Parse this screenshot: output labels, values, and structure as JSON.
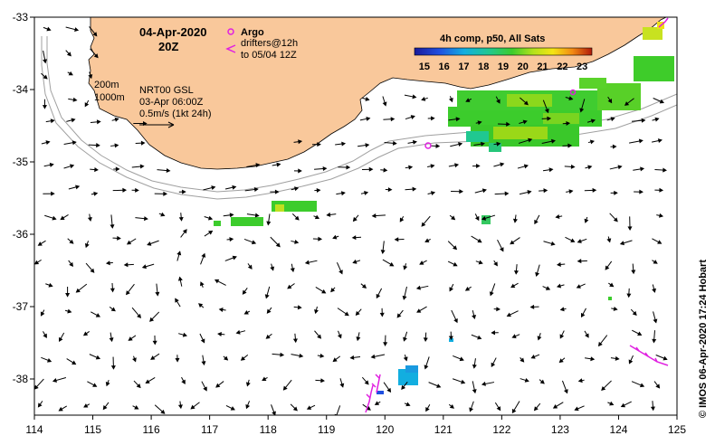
{
  "map": {
    "date_line": "04-Apr-2020",
    "time_line": "20Z",
    "legend_argo_label": "Argo",
    "legend_drifters_line1": "drifters@12h",
    "legend_drifters_line2": "to 05/04 12Z",
    "isobath_200": "200m",
    "isobath_1000": "1000m",
    "current_product": "NRT00 GSL",
    "current_time": "03-Apr 06:00Z",
    "current_scale": "0.5m/s (1kt 24h)",
    "credit": "© IMOS 06-Apr-2020 17:24 Hobart",
    "colors": {
      "land": "#f9c89b",
      "argo": "#e020e0",
      "drifter": "#e020e0",
      "isobath": "#a0a0a0"
    }
  },
  "colorbar": {
    "title": "4h comp, p50, All Sats",
    "ticks": [
      "15",
      "16",
      "17",
      "18",
      "19",
      "20",
      "21",
      "22",
      "23"
    ],
    "min": 14.5,
    "max": 23.5
  },
  "axes": {
    "x_ticks": [
      "114",
      "115",
      "116",
      "117",
      "118",
      "119",
      "120",
      "121",
      "122",
      "123",
      "124",
      "125"
    ],
    "y_ticks": [
      "-33",
      "-34",
      "-35",
      "-36",
      "-37",
      "-38"
    ],
    "lon_range": [
      114,
      125
    ],
    "lat_range": [
      -38.5,
      -33
    ]
  }
}
